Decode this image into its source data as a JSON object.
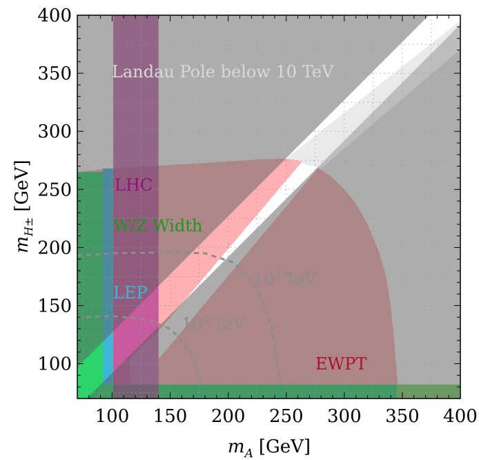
{
  "chart_data": {
    "type": "area",
    "title": "",
    "xlabel": "m_A [GeV]",
    "xlabel_main": "m",
    "xlabel_sub": "A",
    "xlabel_unit": "[GeV]",
    "ylabel": "m_{H±} [GeV]",
    "ylabel_main": "m",
    "ylabel_sub": "H±",
    "ylabel_unit": "[GeV]",
    "xlim": [
      70,
      400
    ],
    "ylim": [
      70,
      400
    ],
    "xticks": [
      100,
      150,
      200,
      250,
      300,
      350,
      400
    ],
    "yticks": [
      100,
      150,
      200,
      250,
      300,
      350,
      400
    ],
    "grid": true,
    "regions": [
      {
        "name": "EWPT",
        "label": "EWPT",
        "color": "#ffb0b3",
        "label_color": "#b0102a",
        "label_at": [
          457,
          535
        ],
        "boundary": [
          [
            70,
            82
          ],
          [
            70,
            265
          ],
          [
            100,
            268
          ],
          [
            150,
            271
          ],
          [
            200,
            274
          ],
          [
            230,
            276
          ],
          [
            250,
            276.5
          ],
          [
            260,
            275
          ],
          [
            270,
            272
          ],
          [
            280,
            267
          ],
          [
            290,
            260
          ],
          [
            300,
            250
          ],
          [
            310,
            238
          ],
          [
            320,
            220
          ],
          [
            330,
            196
          ],
          [
            336,
            175
          ],
          [
            340,
            150
          ],
          [
            343,
            120
          ],
          [
            345,
            95
          ],
          [
            346,
            82
          ]
        ]
      },
      {
        "name": "W/Z Width",
        "label": "W/Z Width",
        "color": "#2ad66a",
        "label_color": "#1a9a1a",
        "label_at": [
          164,
          335
        ],
        "band_left": [
          70,
          92
        ],
        "band_left_top": 265,
        "band_bottom": [
          70,
          400
        ],
        "band_bottom_range": [
          70,
          82
        ],
        "bottom_right_edge": 345
      },
      {
        "name": "LEP",
        "label": "LEP",
        "color": "#3db6d8",
        "label_color": "#3db6d8",
        "label_at": [
          164,
          432
        ],
        "x_range": [
          92,
          101
        ],
        "y_range": [
          82,
          268
        ]
      },
      {
        "name": "LHC",
        "label": "LHC",
        "color": "#b23a96",
        "label_color": "#8e1278",
        "label_at": [
          166,
          276
        ],
        "x_range": [
          101,
          140
        ],
        "y_range": [
          70,
          271
        ]
      },
      {
        "name": "Landau Pole below 10 TeV",
        "label": "Landau Pole below 10 TeV",
        "color": "#5c5c5c",
        "label_color": "#d9d9d9",
        "label_at": [
          162,
          112
        ],
        "diagonal_band_offset": [
          -8,
          27
        ]
      }
    ],
    "contours": [
      {
        "label_base": "10",
        "label_exp": "3",
        "label_unit": "TeV",
        "label_at": [
          367,
          412
        ],
        "points": [
          [
            70,
            193
          ],
          [
            100,
            195
          ],
          [
            150,
            196
          ],
          [
            180,
            195
          ],
          [
            205,
            187
          ],
          [
            220,
            172
          ],
          [
            230,
            153
          ],
          [
            238,
            130
          ],
          [
            242,
            100
          ],
          [
            245,
            82
          ]
        ]
      },
      {
        "label_base": "10",
        "label_exp": "6",
        "label_unit": "TeV",
        "label_at": [
          263,
          477
        ],
        "points": [
          [
            70,
            140
          ],
          [
            100,
            141
          ],
          [
            130,
            138
          ],
          [
            150,
            130
          ],
          [
            160,
            120
          ],
          [
            168,
            108
          ],
          [
            173,
            96
          ],
          [
            176,
            82
          ]
        ]
      }
    ],
    "colors": {
      "background": "#ffffff",
      "frame": "#000000",
      "grid": "#9a9a9a",
      "white_band": "#ffffff",
      "contour": "#8c8c8c"
    }
  }
}
